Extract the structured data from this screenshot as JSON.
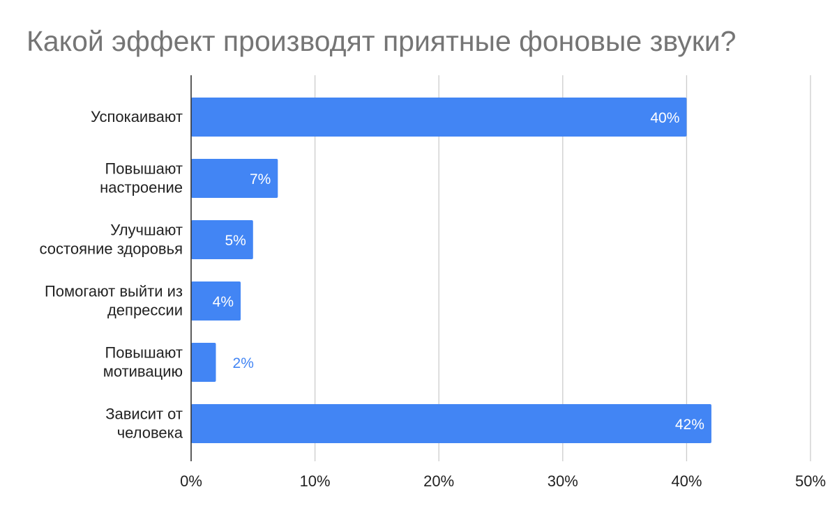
{
  "chart_data": {
    "type": "bar",
    "orientation": "horizontal",
    "title": "Какой эффект производят приятные фоновые звуки?",
    "xlabel": "",
    "ylabel": "",
    "categories": [
      [
        "Успокаивают"
      ],
      [
        "Повышают",
        "настроение"
      ],
      [
        "Улучшают",
        "состояние здоровья"
      ],
      [
        "Помогают выйти из",
        "депрессии"
      ],
      [
        "Повышают",
        "мотивацию"
      ],
      [
        "Зависит от",
        "человека"
      ]
    ],
    "values": [
      40,
      7,
      5,
      4,
      2,
      42
    ],
    "data_labels": [
      "40%",
      "7%",
      "5%",
      "4%",
      "2%",
      "42%"
    ],
    "xlim": [
      0,
      50
    ],
    "x_ticks": [
      0,
      10,
      20,
      30,
      40,
      50
    ],
    "x_tick_labels": [
      "0%",
      "10%",
      "20%",
      "30%",
      "40%",
      "50%"
    ],
    "grid": true,
    "legend": "none",
    "colors": {
      "bar": "#4285f4",
      "gridline": "#cccccc",
      "axis": "#333333",
      "title": "#757575",
      "label_inside": "#ffffff",
      "label_outside": "#4285f4"
    }
  }
}
